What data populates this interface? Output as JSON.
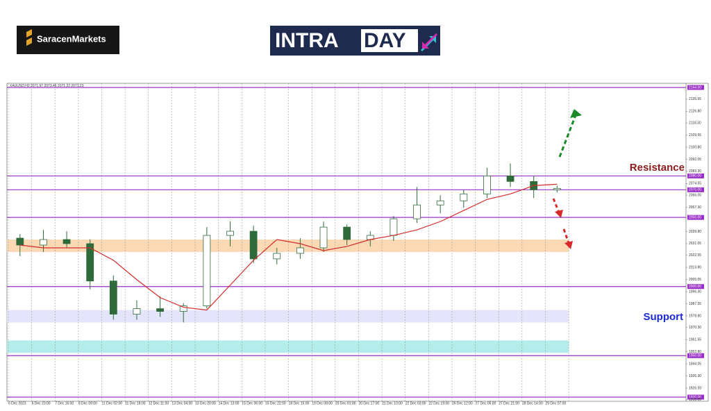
{
  "header": {
    "brand": "SaracenMarkets",
    "banner_left": "INTRA",
    "banner_right": "DAY"
  },
  "chart_data": {
    "type": "candlestick",
    "title": "XAUUSD,H2 2071.97 2073.46 2071.22 2071.23",
    "categories": [
      "6 Dec 2023",
      "6 Dec 23:00",
      "7 Dec 16:00",
      "8 Dec 09:00",
      "11 Dec 02:00",
      "11 Dec 18:00",
      "12 Dec 11:00",
      "13 Dec 04:00",
      "13 Dec 20:00",
      "14 Dec 13:00",
      "15 Dec 06:00",
      "15 Dec 22:00",
      "18 Dec 15:00",
      "19 Dec 08:00",
      "20 Dec 01:00",
      "20 Dec 17:00",
      "21 Dec 10:00",
      "22 Dec 03:00",
      "22 Dec 19:00",
      "26 Dec 12:00",
      "27 Dec 05:00",
      "27 Dec 21:00",
      "28 Dec 14:00",
      "29 Dec 07:00"
    ],
    "open": [
      2035,
      2030,
      2034,
      2031,
      2004,
      1980,
      1984,
      1982,
      1986,
      2037,
      2040,
      2020,
      2024,
      2028,
      2043,
      2034,
      2037,
      2049,
      2059,
      2062,
      2067,
      2080,
      2076,
      2070
    ],
    "high": [
      2038,
      2041,
      2040,
      2034,
      2008,
      1990,
      1993,
      1988,
      2043,
      2047,
      2044,
      2028,
      2035,
      2047,
      2045,
      2040,
      2051,
      2072,
      2066,
      2070,
      2086,
      2089,
      2080,
      2073
    ],
    "low": [
      2022,
      2025,
      2028,
      1998,
      1976,
      1976,
      1978,
      1974,
      1984,
      2029,
      2017,
      2016,
      2020,
      2025,
      2030,
      2029,
      2033,
      2046,
      2053,
      2057,
      2064,
      2072,
      2064,
      2068
    ],
    "close": [
      2030,
      2034,
      2031,
      2004,
      1980,
      1984,
      1982,
      1986,
      2037,
      2040,
      2020,
      2024,
      2028,
      2043,
      2034,
      2037,
      2049,
      2059,
      2062,
      2067,
      2080,
      2076,
      2070,
      2071
    ],
    "color": "#2f6b3a",
    "ma": {
      "color": "#d62a2a",
      "values": [
        2030,
        2028,
        2028,
        2028,
        2019,
        2005,
        1992,
        1985,
        1983,
        2001,
        2019,
        2034,
        2031,
        2026,
        2029,
        2034,
        2037,
        2041,
        2047,
        2055,
        2063,
        2067,
        2073,
        2074
      ]
    },
    "ylim": [
      1917,
      2147
    ],
    "yticks": [
      {
        "value": 2135.55,
        "label": "2135.55"
      },
      {
        "value": 2126.8,
        "label": "2126.80"
      },
      {
        "value": 2118.3,
        "label": "2118.30"
      },
      {
        "value": 2109.55,
        "label": "2109.55"
      },
      {
        "value": 2100.8,
        "label": "2100.80"
      },
      {
        "value": 2092.05,
        "label": "2092.05"
      },
      {
        "value": 2083.3,
        "label": "2083.30"
      },
      {
        "value": 2074.55,
        "label": "2074.55"
      },
      {
        "value": 2066.05,
        "label": "2066.05"
      },
      {
        "value": 2057.3,
        "label": "2057.30"
      },
      {
        "value": 2039.8,
        "label": "2039.80"
      },
      {
        "value": 2031.05,
        "label": "2031.05"
      },
      {
        "value": 2022.55,
        "label": "2022.55"
      },
      {
        "value": 2013.8,
        "label": "2013.80"
      },
      {
        "value": 2005.05,
        "label": "2005.05"
      },
      {
        "value": 1996.3,
        "label": "1996.30"
      },
      {
        "value": 1987.55,
        "label": "1987.55"
      },
      {
        "value": 1978.8,
        "label": "1978.80"
      },
      {
        "value": 1970.3,
        "label": "1970.30"
      },
      {
        "value": 1961.55,
        "label": "1961.55"
      },
      {
        "value": 1952.8,
        "label": "1952.80"
      },
      {
        "value": 1944.05,
        "label": "1944.05"
      },
      {
        "value": 1935.3,
        "label": "1935.30"
      },
      {
        "value": 1926.55,
        "label": "1926.55"
      },
      {
        "value": 1918.05,
        "label": "1918.05"
      }
    ],
    "levels": [
      {
        "value": 2144,
        "label": "2144.00"
      },
      {
        "value": 2080,
        "label": "2080.00"
      },
      {
        "value": 2070,
        "label": "2070.00"
      },
      {
        "value": 2050,
        "label": "2050.00"
      },
      {
        "value": 2000,
        "label": "2000.00"
      },
      {
        "value": 1950,
        "label": "1950.00"
      },
      {
        "value": 1920,
        "label": "1920.00"
      }
    ],
    "level_color": "#9b30c8",
    "zones": [
      {
        "from": 2025,
        "to": 2034,
        "color": "#fbd9b5"
      },
      {
        "from": 1974,
        "to": 1983,
        "color": "#e4e4fa"
      },
      {
        "from": 1952,
        "to": 1961,
        "color": "#b4ecec"
      }
    ],
    "annotations": [
      {
        "text": "Resistance",
        "color": "#8b1a1a"
      },
      {
        "text": "Support",
        "color": "#1a2ad6"
      }
    ]
  }
}
